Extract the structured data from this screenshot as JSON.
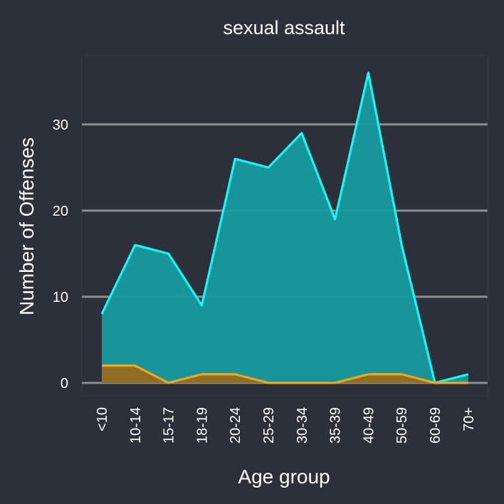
{
  "chart_data": {
    "type": "area",
    "title": "sexual assault",
    "xlabel": "Age group",
    "ylabel": "Number of Offenses",
    "categories": [
      "<10",
      "10-14",
      "15-17",
      "18-19",
      "20-24",
      "25-29",
      "30-34",
      "35-39",
      "40-49",
      "50-59",
      "60-69",
      "70+"
    ],
    "y_ticks": [
      0,
      10,
      20,
      30
    ],
    "ylim": [
      -1.5,
      38
    ],
    "grid": "horizontal",
    "legend": "none",
    "series": [
      {
        "values": [
          8,
          16,
          15,
          9,
          26,
          25,
          29,
          19,
          36,
          16,
          0,
          1
        ],
        "line_color": "#19f5f5",
        "fill_color": "#179aa0"
      },
      {
        "values": [
          2,
          2,
          0,
          1,
          1,
          0,
          0,
          0,
          1,
          1,
          0,
          0
        ],
        "line_color": "#f5a515",
        "fill_color": "#986a1e"
      }
    ],
    "panel_color": "#2b303b",
    "background_color": "#2b303b"
  }
}
